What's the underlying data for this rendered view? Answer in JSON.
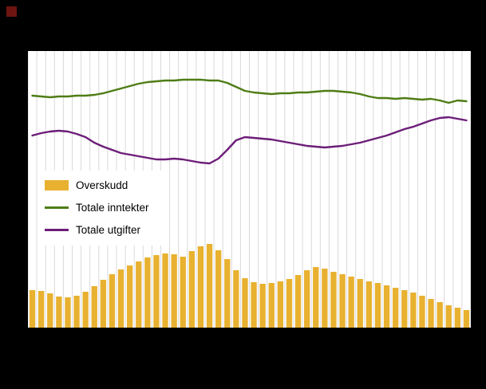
{
  "page": {
    "background_color": "#000000",
    "plot_background_color": "#ffffff"
  },
  "chart_data": {
    "type": "bar",
    "combo_types": [
      "bar",
      "line",
      "line"
    ],
    "x_count": 50,
    "ylim": [
      0,
      347
    ],
    "grid": {
      "vertical": true,
      "horizontal": false,
      "color": "#d9d9d9"
    },
    "legend_position": "middle-left",
    "title": "",
    "xlabel": "",
    "ylabel": "",
    "series": [
      {
        "name": "Overskudd",
        "kind": "bar",
        "color": "#e8b130",
        "values": [
          47,
          46,
          43,
          39,
          38,
          40,
          45,
          52,
          60,
          67,
          73,
          78,
          83,
          88,
          91,
          93,
          92,
          89,
          96,
          102,
          105,
          97,
          86,
          72,
          62,
          57,
          55,
          56,
          58,
          61,
          66,
          72,
          76,
          74,
          70,
          67,
          64,
          61,
          58,
          56,
          53,
          50,
          47,
          44,
          40,
          36,
          32,
          28,
          25,
          22
        ]
      },
      {
        "name": "Totale inntekter",
        "kind": "line",
        "color": "#4e7d15",
        "values": [
          291,
          290,
          289,
          290,
          290,
          291,
          291,
          292,
          294,
          297,
          300,
          303,
          306,
          308,
          309,
          310,
          310,
          311,
          311,
          311,
          310,
          310,
          307,
          302,
          297,
          295,
          294,
          293,
          294,
          294,
          295,
          295,
          296,
          297,
          297,
          296,
          295,
          293,
          290,
          288,
          288,
          287,
          288,
          287,
          286,
          287,
          285,
          282,
          285,
          284
        ]
      },
      {
        "name": "Totale utgifter",
        "kind": "line",
        "color": "#6c1d78",
        "values": [
          241,
          244,
          246,
          247,
          246,
          243,
          239,
          232,
          227,
          223,
          219,
          217,
          215,
          213,
          211,
          211,
          212,
          211,
          209,
          207,
          206,
          212,
          223,
          235,
          239,
          238,
          237,
          236,
          234,
          232,
          230,
          228,
          227,
          226,
          227,
          228,
          230,
          232,
          235,
          238,
          241,
          245,
          249,
          252,
          256,
          260,
          263,
          264,
          262,
          260
        ]
      }
    ]
  },
  "legend": {
    "items": [
      "Overskudd",
      "Totale inntekter",
      "Totale utgifter"
    ]
  }
}
